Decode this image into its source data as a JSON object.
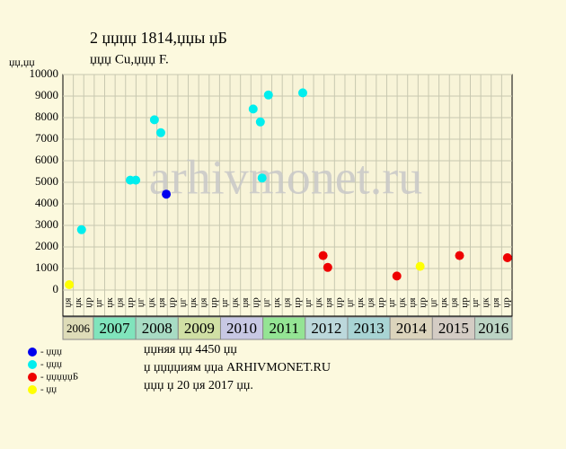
{
  "chart_data": {
    "type": "scatter",
    "title": "2 џџџџ 1814,џџы џБ",
    "subtitle": "џџџ Cu,џџџ F.",
    "y_label": "џџ,џџ",
    "watermark": "arhivmonet.ru",
    "xlim": [
      2006.28,
      2016.88
    ],
    "xticks": [
      2006,
      2007,
      2008,
      2009,
      2010,
      2011,
      2012,
      2013,
      2014,
      2015,
      2016
    ],
    "band_colors": [
      "#dedcb8",
      "#80e4bc",
      "#a8dcc4",
      "#d0e0a4",
      "#c8c8e4",
      "#94e494",
      "#bcd8dc",
      "#a8d4d4",
      "#dcd4bc",
      "#d4ccc4",
      "#bcd4c4"
    ],
    "column_labels": [
      "џя",
      "џк",
      "џр",
      "џг",
      "џк",
      "џя",
      "џр",
      "џг",
      "џк",
      "џя",
      "џр",
      "џг",
      "џк",
      "џя",
      "џр",
      "џг",
      "џк",
      "џя",
      "џр",
      "џг",
      "џк",
      "џя",
      "џр",
      "џг",
      "џк",
      "џя",
      "џр",
      "џг",
      "џк",
      "џя",
      "џр",
      "џг",
      "џк",
      "џя",
      "џр",
      "џг",
      "џк",
      "џя",
      "џр",
      "џг",
      "џк",
      "џя",
      "џр"
    ],
    "ylim": [
      0,
      10000
    ],
    "yticks": [
      0,
      1000,
      2000,
      3000,
      4000,
      5000,
      6000,
      7000,
      8000,
      9000,
      10000
    ],
    "grid": true,
    "series": [
      {
        "name": "- џџџ",
        "color": "#0000ee",
        "x": [
          2008.72
        ],
        "values": [
          4450
        ]
      },
      {
        "name": "- џџџ",
        "color": "#00eeee",
        "x": [
          2006.72,
          2007.87,
          2008.0,
          2008.44,
          2008.59,
          2010.77,
          2010.94,
          2010.98,
          2011.13,
          2011.94
        ],
        "values": [
          2800,
          5100,
          5100,
          7900,
          7300,
          8400,
          7800,
          5200,
          9050,
          9150
        ]
      },
      {
        "name": "- џџџџџБ",
        "color": "#ee0000",
        "x": [
          2012.42,
          2012.53,
          2014.16,
          2015.64,
          2016.77
        ],
        "values": [
          1600,
          1050,
          650,
          1600,
          1500
        ]
      },
      {
        "name": "- џџ",
        "color": "#ffff00",
        "x": [
          2006.43,
          2014.71
        ],
        "values": [
          250,
          1100
        ]
      }
    ],
    "notes": [
      "џџняя џџ 4450 џџ",
      "џ џџџџиям џџа ARHIVMONET.RU",
      "џџџ џ 20 џя 2017 џџ."
    ]
  }
}
